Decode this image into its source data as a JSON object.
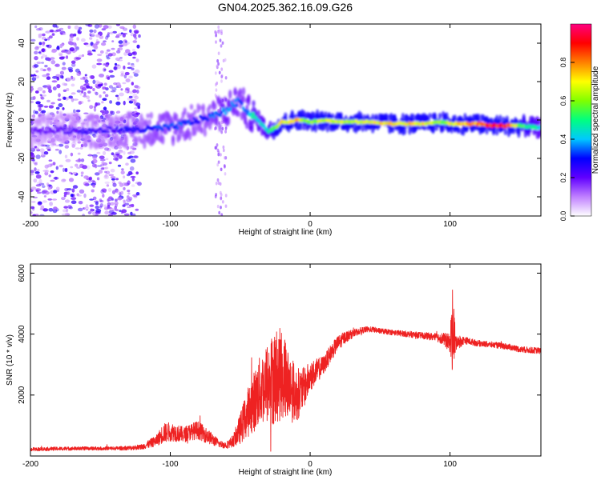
{
  "title": "GN04.2025.362.16.09.G26",
  "colors": {
    "line": "#ee2222",
    "axis": "#000000",
    "background": "#ffffff"
  },
  "chart_data": [
    {
      "type": "heatmap",
      "name": "spectrogram",
      "xlabel": "Height of straight line (km)",
      "ylabel": "Frequency (Hz)",
      "xlim": [
        -200,
        165
      ],
      "ylim": [
        -50,
        50
      ],
      "xticks": [
        -200,
        -100,
        0,
        100
      ],
      "yticks": [
        -40,
        -20,
        0,
        20,
        40
      ],
      "colorbar": {
        "label": "Normalized spectral amplitude",
        "range": [
          0,
          1
        ],
        "ticks": [
          "0.0",
          "0.2",
          "0.4",
          "0.6",
          "0.8"
        ],
        "tick_values": [
          0,
          0.2,
          0.4,
          0.6,
          0.8
        ],
        "colormap": [
          "#ffffff",
          "#c080ff",
          "#6000ff",
          "#0000ff",
          "#00c8ff",
          "#00ff80",
          "#80ff00",
          "#ffff00",
          "#ff8000",
          "#ff0000",
          "#ff0080"
        ]
      },
      "ridge": {
        "x": [
          -200,
          -180,
          -160,
          -140,
          -120,
          -100,
          -90,
          -80,
          -70,
          -60,
          -55,
          -50,
          -45,
          -40,
          -35,
          -30,
          -25,
          -20,
          -15,
          -10,
          -5,
          0,
          10,
          20,
          40,
          60,
          80,
          95,
          100,
          110,
          120,
          130,
          140,
          150,
          165
        ],
        "freq": [
          -6,
          -5,
          -6,
          -5,
          -5,
          -4,
          -2,
          0,
          2,
          5,
          8,
          10,
          4,
          2,
          -2,
          -6,
          -4,
          -1,
          -1,
          0,
          0,
          -1,
          0,
          -1,
          -1,
          -2,
          -2,
          -1,
          -2,
          -2,
          -2,
          -3,
          -3,
          -3,
          -4
        ],
        "amplitude": [
          0.2,
          0.2,
          0.25,
          0.25,
          0.3,
          0.35,
          0.35,
          0.3,
          0.35,
          0.4,
          0.4,
          0.35,
          0.4,
          0.5,
          0.45,
          0.5,
          0.6,
          0.75,
          0.7,
          0.8,
          0.6,
          0.6,
          0.7,
          0.65,
          0.7,
          0.75,
          0.75,
          0.6,
          0.7,
          0.8,
          0.85,
          0.9,
          0.95,
          0.6,
          0.45
        ]
      }
    },
    {
      "type": "line",
      "name": "snr",
      "xlabel": "Height of straight line (km)",
      "ylabel": "SNR (10 * v/v)",
      "xlim": [
        -200,
        165
      ],
      "ylim": [
        0,
        6300
      ],
      "xticks": [
        -200,
        -100,
        0,
        100
      ],
      "yticks": [
        2000,
        4000,
        6000
      ],
      "series": [
        {
          "name": "SNR",
          "x": [
            -200,
            -180,
            -160,
            -140,
            -130,
            -120,
            -110,
            -105,
            -100,
            -95,
            -90,
            -85,
            -80,
            -75,
            -70,
            -65,
            -60,
            -55,
            -50,
            -45,
            -40,
            -35,
            -30,
            -25,
            -20,
            -15,
            -10,
            -5,
            0,
            5,
            10,
            15,
            20,
            25,
            30,
            35,
            40,
            45,
            50,
            60,
            70,
            80,
            90,
            95,
            100,
            102,
            104,
            110,
            120,
            130,
            140,
            150,
            165
          ],
          "values": [
            220,
            240,
            250,
            250,
            260,
            300,
            500,
            750,
            800,
            750,
            700,
            800,
            850,
            700,
            550,
            400,
            350,
            500,
            900,
            1400,
            1800,
            2200,
            2400,
            2600,
            2700,
            2300,
            2000,
            2200,
            2600,
            2800,
            3000,
            3400,
            3700,
            3900,
            4000,
            4100,
            4150,
            4150,
            4100,
            4050,
            4000,
            3950,
            3900,
            3850,
            3700,
            4200,
            3700,
            3800,
            3700,
            3650,
            3600,
            3500,
            3450
          ],
          "noise": [
            60,
            60,
            60,
            60,
            70,
            90,
            180,
            320,
            320,
            280,
            250,
            280,
            300,
            260,
            200,
            120,
            110,
            200,
            500,
            800,
            1000,
            1200,
            1400,
            1600,
            1500,
            1200,
            900,
            700,
            500,
            400,
            300,
            280,
            250,
            200,
            140,
            110,
            100,
            90,
            90,
            90,
            100,
            110,
            130,
            200,
            300,
            1600,
            300,
            120,
            100,
            100,
            100,
            100,
            100
          ]
        }
      ]
    }
  ]
}
